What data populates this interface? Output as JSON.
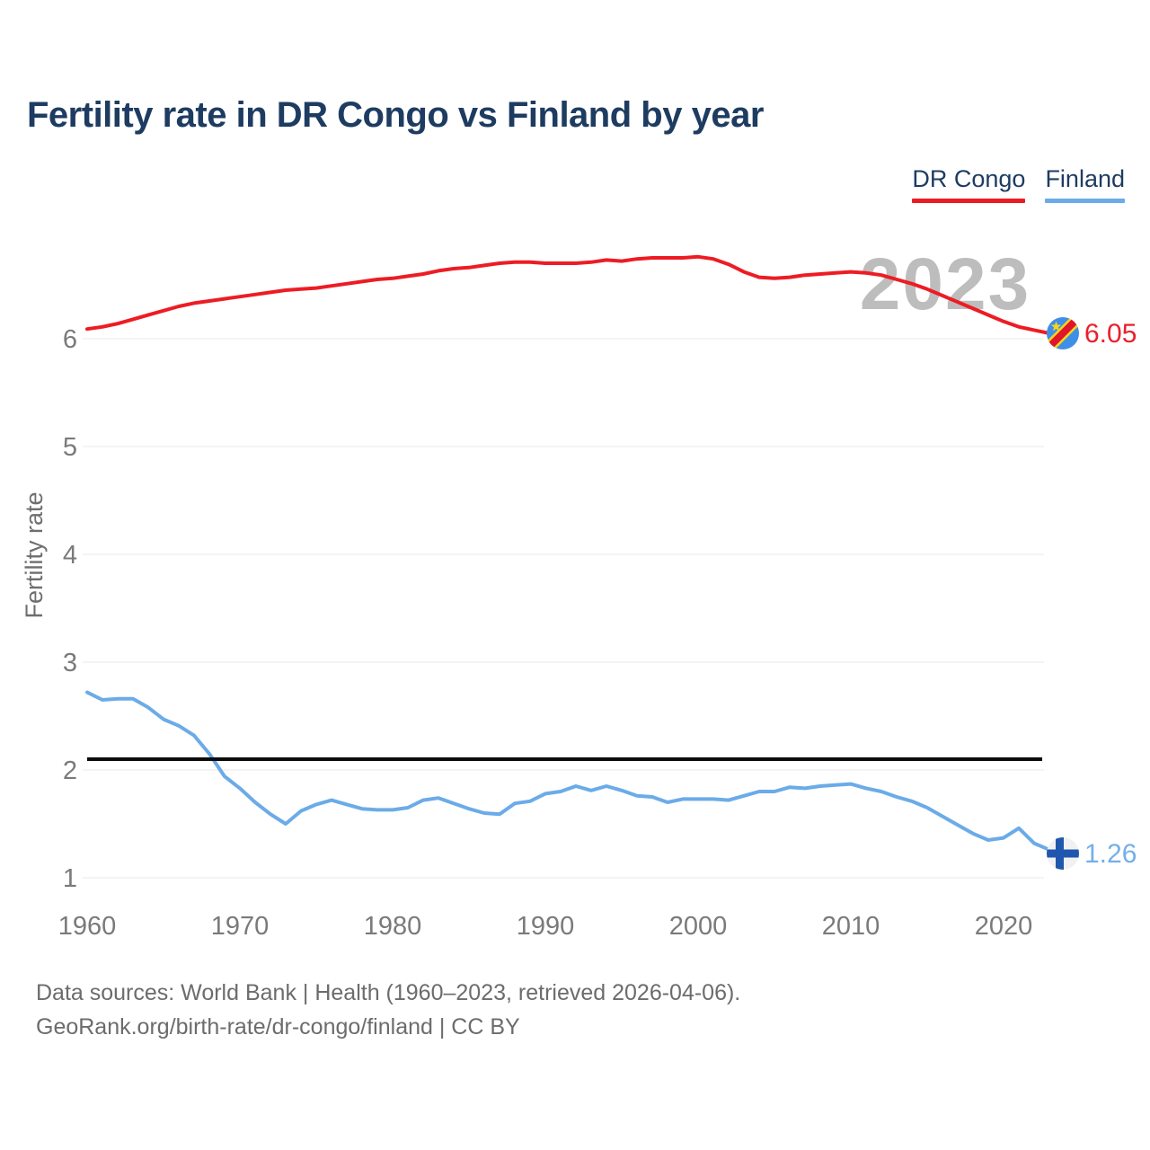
{
  "title": "Fertility rate in DR Congo vs Finland by year",
  "watermark": "2023",
  "legend": [
    {
      "label": "DR Congo",
      "color": "#ed1c24"
    },
    {
      "label": "Finland",
      "color": "#6babe8"
    }
  ],
  "end_labels": {
    "dr_congo": "6.05",
    "finland": "1.26"
  },
  "icons": {
    "dr_congo": "dr-congo-flag",
    "finland": "finland-flag"
  },
  "footer": {
    "line1": "Data sources: World Bank | Health (1960–2023, retrieved 2026-04-06).",
    "line2": "GeoRank.org/birth-rate/dr-congo/finland | CC BY"
  },
  "chart_data": {
    "type": "line",
    "title": "Fertility rate in DR Congo vs Finland by year",
    "xlabel": "",
    "ylabel": "Fertility rate",
    "xlim": [
      1960,
      2023
    ],
    "ylim": [
      1,
      6
    ],
    "x_ticks": [
      1960,
      1970,
      1980,
      1990,
      2000,
      2010,
      2020
    ],
    "y_ticks": [
      1,
      2,
      3,
      4,
      5,
      6
    ],
    "grid": "horizontal",
    "legend_position": "top-right",
    "reference_line": {
      "value": 2.1,
      "color": "#0b0b0b"
    },
    "years": [
      1960,
      1961,
      1962,
      1963,
      1964,
      1965,
      1966,
      1967,
      1968,
      1969,
      1970,
      1971,
      1972,
      1973,
      1974,
      1975,
      1976,
      1977,
      1978,
      1979,
      1980,
      1981,
      1982,
      1983,
      1984,
      1985,
      1986,
      1987,
      1988,
      1989,
      1990,
      1991,
      1992,
      1993,
      1994,
      1995,
      1996,
      1997,
      1998,
      1999,
      2000,
      2001,
      2002,
      2003,
      2004,
      2005,
      2006,
      2007,
      2008,
      2009,
      2010,
      2011,
      2012,
      2013,
      2014,
      2015,
      2016,
      2017,
      2018,
      2019,
      2020,
      2021,
      2022,
      2023
    ],
    "series": [
      {
        "name": "DR Congo",
        "color": "#ed1c24",
        "end_value": 6.05,
        "values": [
          6.09,
          6.11,
          6.14,
          6.18,
          6.22,
          6.26,
          6.3,
          6.33,
          6.35,
          6.37,
          6.39,
          6.41,
          6.43,
          6.45,
          6.46,
          6.47,
          6.49,
          6.51,
          6.53,
          6.55,
          6.56,
          6.58,
          6.6,
          6.63,
          6.65,
          6.66,
          6.68,
          6.7,
          6.71,
          6.71,
          6.7,
          6.7,
          6.7,
          6.71,
          6.73,
          6.72,
          6.74,
          6.75,
          6.75,
          6.75,
          6.76,
          6.74,
          6.69,
          6.62,
          6.57,
          6.56,
          6.57,
          6.59,
          6.6,
          6.61,
          6.62,
          6.61,
          6.59,
          6.55,
          6.51,
          6.46,
          6.4,
          6.34,
          6.28,
          6.22,
          6.16,
          6.11,
          6.08,
          6.05
        ]
      },
      {
        "name": "Finland",
        "color": "#6babe8",
        "end_value": 1.26,
        "values": [
          2.72,
          2.65,
          2.66,
          2.66,
          2.58,
          2.47,
          2.41,
          2.32,
          2.15,
          1.94,
          1.83,
          1.7,
          1.59,
          1.5,
          1.62,
          1.68,
          1.72,
          1.68,
          1.64,
          1.63,
          1.63,
          1.65,
          1.72,
          1.74,
          1.69,
          1.64,
          1.6,
          1.59,
          1.69,
          1.71,
          1.78,
          1.8,
          1.85,
          1.81,
          1.85,
          1.81,
          1.76,
          1.75,
          1.7,
          1.73,
          1.73,
          1.73,
          1.72,
          1.76,
          1.8,
          1.8,
          1.84,
          1.83,
          1.85,
          1.86,
          1.87,
          1.83,
          1.8,
          1.75,
          1.71,
          1.65,
          1.57,
          1.49,
          1.41,
          1.35,
          1.37,
          1.46,
          1.32,
          1.26
        ]
      }
    ]
  }
}
